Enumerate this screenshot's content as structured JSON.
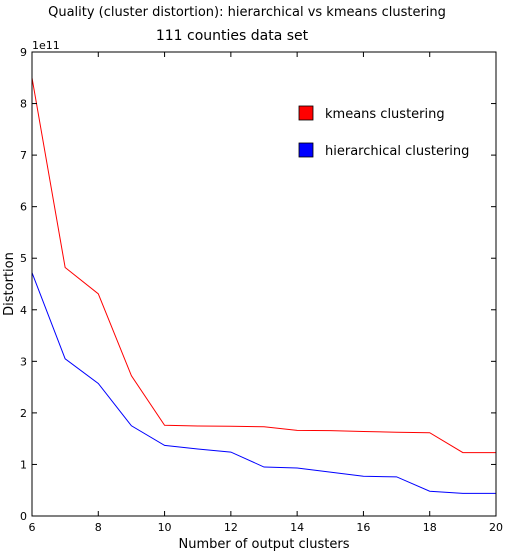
{
  "chart_data": {
    "type": "line",
    "title": "Quality (cluster distortion): hierarchical vs kmeans clustering",
    "subtitle": "111 counties data set",
    "xlabel": "Number of output clusters",
    "ylabel": "Distortion",
    "y_exponent_label": "1e11",
    "xlim": [
      6,
      20
    ],
    "ylim": [
      0,
      9
    ],
    "x_ticks": [
      6,
      8,
      10,
      12,
      14,
      16,
      18,
      20
    ],
    "y_ticks": [
      0,
      1,
      2,
      3,
      4,
      5,
      6,
      7,
      8,
      9
    ],
    "grid": false,
    "legend_position": "top-right",
    "x": [
      6,
      7,
      8,
      9,
      10,
      11,
      12,
      13,
      14,
      15,
      16,
      17,
      18,
      19,
      20
    ],
    "series": [
      {
        "name": "kmeans clustering",
        "color": "#ff0000",
        "values": [
          8.5,
          4.82,
          4.31,
          2.72,
          1.76,
          1.745,
          1.74,
          1.73,
          1.66,
          1.655,
          1.64,
          1.625,
          1.615,
          1.23,
          1.23
        ]
      },
      {
        "name": "hierarchical clustering",
        "color": "#0000ff",
        "values": [
          4.72,
          3.05,
          2.57,
          1.75,
          1.37,
          1.3,
          1.24,
          0.95,
          0.93,
          0.85,
          0.77,
          0.76,
          0.48,
          0.44,
          0.44
        ]
      }
    ]
  }
}
